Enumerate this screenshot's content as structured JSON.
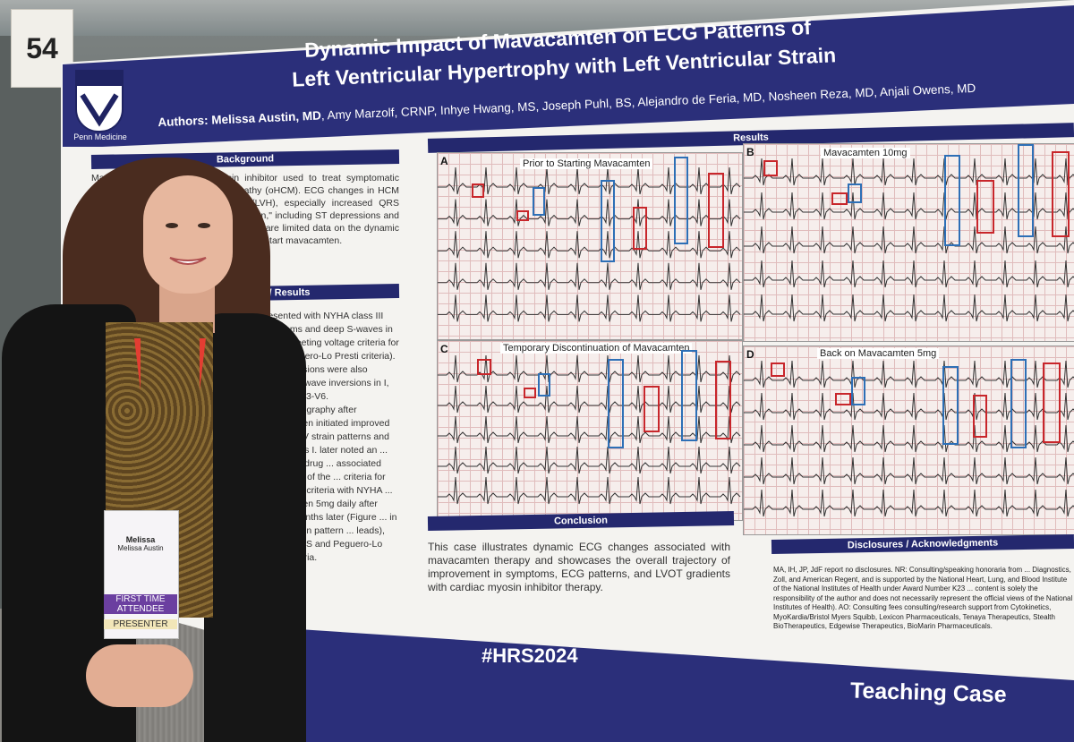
{
  "booth_number": "54",
  "poster": {
    "institution": "Penn Medicine",
    "title_line1": "Dynamic Impact of Mavacamten on ECG Patterns of",
    "title_line2": "Left Ventricular Hypertrophy with Left Ventricular Strain",
    "authors_lead": "Authors: Melissa Austin, MD",
    "authors_rest": ", Amy Marzolf, CRNP, Inhye Hwang, MS, Joseph Puhl, BS, Alejandro de Feria, MD, Nosheen Reza, MD, Anjali Owens, MD",
    "background_heading": "Background",
    "background_text": "Mavacamten is a cardiac myosin inhibitor used to treat symptomatic obstructive hypertrophic cardiomyopathy (oHCM). ECG changes in HCM include left ventricular hypertrophy (LVH), especially increased QRS voltage, and left ventricular \"strain pattern,\" including ST depressions and T-wave inversions in lateral leads. There are limited data on the dynamic ECG changes in patients who stop and restart mavacamten.",
    "case_heading": "Case Presentation / Results",
    "case_text": "presented with NYHA class III symptoms and deep S-waves in V1-V2 meeting voltage criteria for LVH (Peguero-Lo Presti criteria). ST depressions were also present, T-wave inversions in I, aVL, and V3-V6. Echocardiography after mavacamten initiated improved LVH and LV strain patterns and NYHA class I. later noted an ... temporary drug ... associated recurrence of the ... criteria for LVH per ... criteria with NYHA ... mavacamten 5mg daily after several months later (Figure ... in the LV strain pattern ... leads), decreased S and Peguero-Lo Presti criteria.",
    "results_heading": "Results",
    "ecg_panels": [
      {
        "letter": "A",
        "caption": "Prior to Starting Mavacamten"
      },
      {
        "letter": "B",
        "caption": "Mavacamten 10mg"
      },
      {
        "letter": "C",
        "caption": "Temporary Discontinuation of Mavacamten"
      },
      {
        "letter": "D",
        "caption": "Back on Mavacamten 5mg"
      }
    ],
    "conclusion_heading": "Conclusion",
    "conclusion_text": "This case illustrates dynamic ECG changes associated with mavacamten therapy and showcases the overall trajectory of improvement in symptoms, ECG patterns, and LVOT gradients with cardiac myosin inhibitor therapy.",
    "disclosures_heading": "Disclosures / Acknowledgments",
    "disclosures_text": "MA, IH, JP, JdF report no disclosures. NR: Consulting/speaking honoraria from ... Diagnostics, Zoll, and American Regent, and is supported by the National Heart, Lung, and Blood Institute of the National Institutes of Health under Award Number K23 ... content is solely the responsibility of the author and does not necessarily represent the official views of the National Institutes of Health). AO: Consulting fees consulting/research support from Cytokinetics, MyoKardia/Bristol Myers Squibb, Lexicon Pharmaceuticals, Tenaya Therapeutics, Stealth BioTherapeutics, Edgewise Therapeutics, BioMarin Pharmaceuticals.",
    "hashtag": "#HRS2024",
    "footer_label": "Teaching Case"
  },
  "badge": {
    "first_name": "Melissa",
    "full_name": "Melissa Austin",
    "first_time": "FIRST TIME ATTENDEE",
    "role": "PRESENTER"
  },
  "colors": {
    "poster_navy": "#2b2f7a",
    "ecg_red_box": "#c8262b",
    "ecg_blue_box": "#2d6fb6",
    "lanyard_red": "#e43d32"
  }
}
